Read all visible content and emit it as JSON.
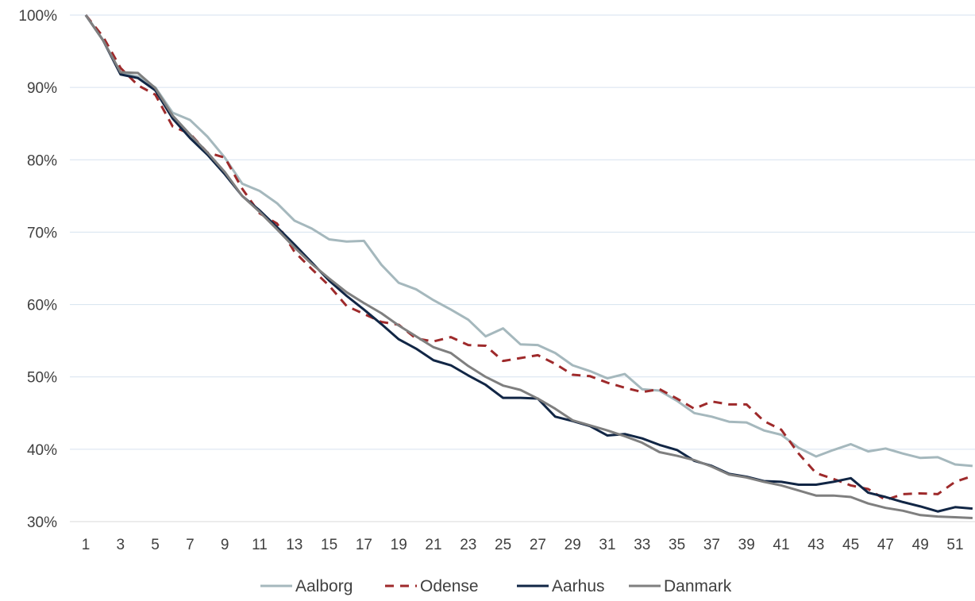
{
  "chart_data": {
    "type": "line",
    "title": "",
    "xlabel": "",
    "ylabel": "",
    "ylim": [
      30,
      100
    ],
    "y_ticks": [
      30,
      40,
      50,
      60,
      70,
      80,
      90,
      100
    ],
    "y_tick_suffix": "%",
    "x": [
      1,
      2,
      3,
      4,
      5,
      6,
      7,
      8,
      9,
      10,
      11,
      12,
      13,
      14,
      15,
      16,
      17,
      18,
      19,
      20,
      21,
      22,
      23,
      24,
      25,
      26,
      27,
      28,
      29,
      30,
      31,
      32,
      33,
      34,
      35,
      36,
      37,
      38,
      39,
      40,
      41,
      42,
      43,
      44,
      45,
      46,
      47,
      48,
      49,
      50,
      51,
      52
    ],
    "x_tick_labels": [
      "1",
      "3",
      "5",
      "7",
      "9",
      "11",
      "13",
      "15",
      "17",
      "19",
      "21",
      "23",
      "25",
      "27",
      "29",
      "31",
      "33",
      "35",
      "37",
      "39",
      "41",
      "43",
      "45",
      "47",
      "49",
      "51"
    ],
    "grid": true,
    "legend_position": "bottom",
    "series": [
      {
        "name": "Aalborg",
        "color": "#a5b8bd",
        "dash": "solid",
        "values": [
          100,
          96.5,
          92,
          91.5,
          90,
          86.5,
          85.5,
          83.2,
          80.3,
          76.7,
          75.7,
          74,
          71.6,
          70.5,
          69,
          68.7,
          68.8,
          65.5,
          63,
          62.1,
          60.6,
          59.3,
          57.9,
          55.6,
          56.7,
          54.5,
          54.4,
          53.3,
          51.6,
          50.8,
          49.8,
          50.4,
          48.3,
          48.1,
          46.7,
          45,
          44.5,
          43.8,
          43.7,
          42.6,
          42,
          40.2,
          39,
          39.9,
          40.7,
          39.7,
          40.1,
          39.4,
          38.8,
          38.9,
          37.9,
          37.7
        ]
      },
      {
        "name": "Odense",
        "color": "#9e2a2b",
        "dash": "dashed",
        "values": [
          100,
          97,
          92.7,
          90.3,
          89,
          84.6,
          83.6,
          81,
          80.3,
          76,
          72.6,
          71.2,
          67.3,
          64.9,
          62.6,
          59.8,
          58.7,
          57.6,
          57.2,
          55.3,
          54.9,
          55.5,
          54.4,
          54.3,
          52.2,
          52.6,
          53,
          51.8,
          50.3,
          50.1,
          49.2,
          48.5,
          47.9,
          48.3,
          47,
          45.6,
          46.6,
          46.2,
          46.2,
          43.9,
          42.7,
          39.4,
          36.7,
          35.9,
          35,
          34.5,
          33,
          33.8,
          33.9,
          33.8,
          35.5,
          36.3
        ]
      },
      {
        "name": "Aarhus",
        "color": "#112645",
        "dash": "solid",
        "values": [
          100,
          96.5,
          91.8,
          91.3,
          89.6,
          85.7,
          83,
          80.7,
          78,
          75,
          73,
          70.7,
          68.3,
          65.8,
          63.3,
          61.2,
          59.3,
          57.3,
          55.2,
          53.9,
          52.3,
          51.6,
          50.2,
          48.9,
          47.1,
          47.1,
          47,
          44.5,
          43.9,
          43.2,
          41.9,
          42.1,
          41.5,
          40.6,
          39.9,
          38.4,
          37.7,
          36.6,
          36.2,
          35.6,
          35.5,
          35.1,
          35.1,
          35.5,
          36,
          34,
          33.4,
          32.7,
          32.1,
          31.4,
          32,
          31.8
        ]
      },
      {
        "name": "Danmark",
        "color": "#7f7f7f",
        "dash": "solid",
        "values": [
          100,
          96.5,
          92.1,
          92,
          89.9,
          86.1,
          83.5,
          81,
          78.3,
          75,
          72.8,
          70.4,
          67.9,
          65.6,
          63.6,
          61.7,
          60.2,
          58.8,
          57.1,
          55.6,
          54.1,
          53.3,
          51.5,
          50,
          48.8,
          48.2,
          47,
          45.6,
          44,
          43.3,
          42.6,
          41.8,
          40.9,
          39.6,
          39.1,
          38.5,
          37.6,
          36.5,
          36.1,
          35.5,
          35,
          34.3,
          33.6,
          33.6,
          33.4,
          32.5,
          31.9,
          31.5,
          30.9,
          30.7,
          30.6,
          30.5
        ]
      }
    ]
  }
}
